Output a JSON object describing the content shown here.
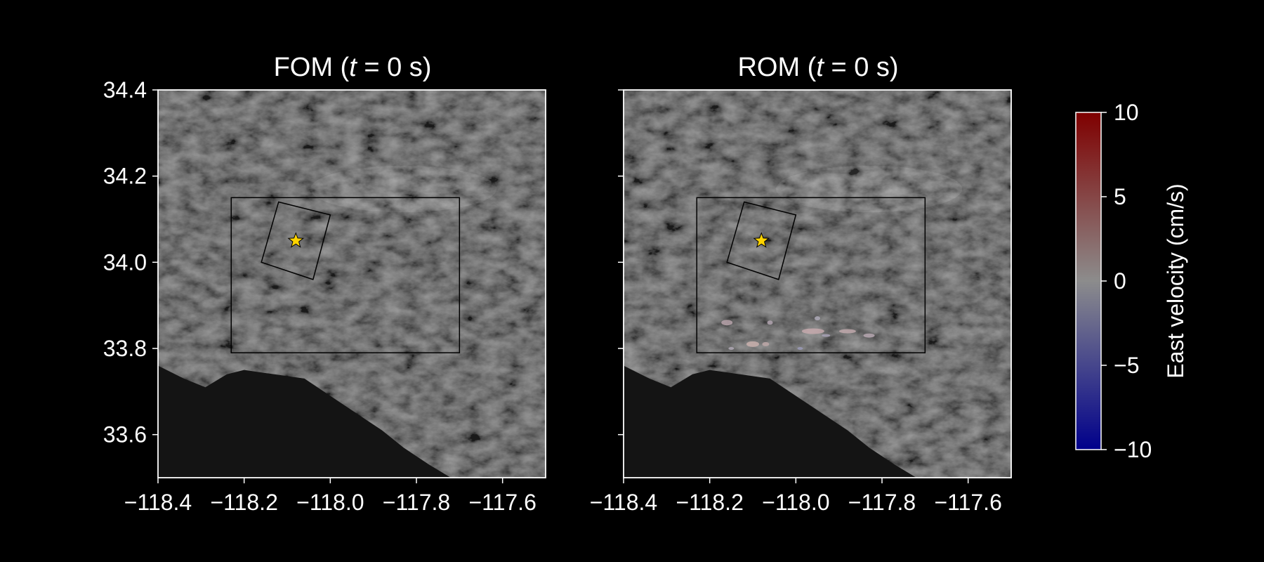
{
  "panels": [
    {
      "id": "fom",
      "title_prefix": "FOM (",
      "title_var": "t",
      "title_suffix": " = 0 s)",
      "show_yticks": true,
      "show_patches": false
    },
    {
      "id": "rom",
      "title_prefix": "ROM (",
      "title_var": "t",
      "title_suffix": " = 0 s)",
      "show_yticks": false,
      "show_patches": true
    }
  ],
  "x_ticks": [
    {
      "value": -118.4,
      "label": "−118.4"
    },
    {
      "value": -118.2,
      "label": "−118.2"
    },
    {
      "value": -118.0,
      "label": "−118.0"
    },
    {
      "value": -117.8,
      "label": "−117.8"
    },
    {
      "value": -117.6,
      "label": "−117.6"
    }
  ],
  "y_ticks": [
    {
      "value": 34.4,
      "label": "34.4"
    },
    {
      "value": 34.2,
      "label": "34.2"
    },
    {
      "value": 34.0,
      "label": "34.0"
    },
    {
      "value": 33.8,
      "label": "33.8"
    },
    {
      "value": 33.6,
      "label": "33.6"
    }
  ],
  "extent": {
    "lon": [
      -118.4,
      -117.5
    ],
    "lat": [
      33.5,
      34.4
    ]
  },
  "epicenter": {
    "lon": -118.08,
    "lat": 34.05,
    "color": "#FFD400"
  },
  "outer_box": {
    "lon": [
      -118.23,
      -117.7
    ],
    "lat": [
      33.79,
      34.15
    ]
  },
  "fault_box": [
    [
      -118.12,
      34.14
    ],
    [
      -118.0,
      34.11
    ],
    [
      -118.04,
      33.96
    ],
    [
      -118.16,
      34.0
    ]
  ],
  "colorbar": {
    "label": "East velocity (cm/s)",
    "min": -10,
    "max": 10,
    "ticks": [
      {
        "value": 10,
        "label": "10"
      },
      {
        "value": 5,
        "label": "5"
      },
      {
        "value": 0,
        "label": "0"
      },
      {
        "value": -5,
        "label": "−5"
      },
      {
        "value": -10,
        "label": "−10"
      }
    ],
    "colors": {
      "high": "#7F0000",
      "mid": "#8C8C8C",
      "low": "#00008B"
    }
  },
  "colors": {
    "background": "#000000",
    "axes": "#FFFFFF",
    "ocean": "#141414",
    "terrain": "#3a3a3a",
    "box": "#000000"
  }
}
